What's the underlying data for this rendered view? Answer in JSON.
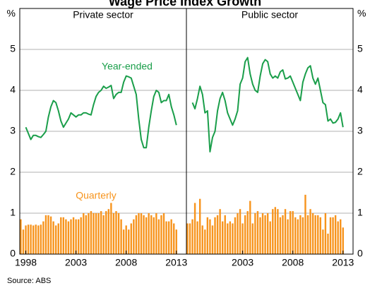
{
  "title": "Wage Price Index Growth",
  "source": "Source: ABS",
  "chart_data": [
    {
      "type": "line-bar",
      "title": "Private sector",
      "ylabel": "%",
      "x": [
        1997.5,
        1997.75,
        1998,
        1998.25,
        1998.5,
        1998.75,
        1999,
        1999.25,
        1999.5,
        1999.75,
        2000,
        2000.25,
        2000.5,
        2000.75,
        2001,
        2001.25,
        2001.5,
        2001.75,
        2002,
        2002.25,
        2002.5,
        2002.75,
        2003,
        2003.25,
        2003.5,
        2003.75,
        2004,
        2004.25,
        2004.5,
        2004.75,
        2005,
        2005.25,
        2005.5,
        2005.75,
        2006,
        2006.25,
        2006.5,
        2006.75,
        2007,
        2007.25,
        2007.5,
        2007.75,
        2008,
        2008.25,
        2008.5,
        2008.75,
        2009,
        2009.25,
        2009.5,
        2009.75,
        2010,
        2010.25,
        2010.5,
        2010.75,
        2011,
        2011.25,
        2011.5,
        2011.75,
        2012,
        2012.25,
        2012.5,
        2012.75,
        2013
      ],
      "series": [
        {
          "name": "Year-ended",
          "kind": "line",
          "color": "#1a9e4a",
          "values": [
            null,
            null,
            3.1,
            2.95,
            2.8,
            2.9,
            2.9,
            2.87,
            2.85,
            2.92,
            3.0,
            3.35,
            3.6,
            3.75,
            3.7,
            3.5,
            3.25,
            3.1,
            3.2,
            3.3,
            3.45,
            3.4,
            3.35,
            3.4,
            3.4,
            3.45,
            3.45,
            3.42,
            3.4,
            3.65,
            3.85,
            3.95,
            4.0,
            4.1,
            4.05,
            4.08,
            4.12,
            3.8,
            3.9,
            3.95,
            3.95,
            4.2,
            4.35,
            4.33,
            4.3,
            4.1,
            3.9,
            3.3,
            2.8,
            2.6,
            2.6,
            3.1,
            3.5,
            3.85,
            4.0,
            3.95,
            3.7,
            3.75,
            3.75,
            3.9,
            3.6,
            3.4,
            3.15
          ]
        },
        {
          "name": "Quarterly",
          "kind": "bar",
          "color": "#f7941d",
          "values": [
            0.85,
            0.6,
            0.7,
            0.72,
            0.72,
            0.7,
            0.72,
            0.7,
            0.72,
            0.8,
            0.95,
            0.95,
            0.92,
            0.8,
            0.7,
            0.75,
            0.9,
            0.9,
            0.85,
            0.8,
            0.85,
            0.9,
            0.85,
            0.85,
            0.9,
            1.0,
            0.95,
            1.0,
            1.05,
            1.0,
            1.0,
            1.0,
            1.05,
            0.95,
            1.05,
            1.1,
            1.25,
            1.0,
            1.05,
            1.0,
            0.85,
            0.6,
            0.7,
            0.6,
            0.75,
            0.85,
            0.95,
            1.0,
            1.0,
            0.95,
            0.9,
            1.0,
            0.95,
            0.9,
            1.0,
            0.85,
            0.95,
            1.0,
            0.8,
            0.8,
            0.85,
            0.75,
            0.6
          ]
        }
      ],
      "xlim": [
        1997.4,
        2014.0
      ],
      "xticks": [
        1998,
        2003,
        2008,
        2013
      ],
      "ylim": [
        0,
        6
      ],
      "yticks": [
        0,
        1,
        2,
        3,
        4,
        5
      ],
      "grid": true,
      "yaxis_side": "left"
    },
    {
      "type": "line-bar",
      "title": "Public sector",
      "ylabel": "%",
      "x": [
        1997.5,
        1997.75,
        1998,
        1998.25,
        1998.5,
        1998.75,
        1999,
        1999.25,
        1999.5,
        1999.75,
        2000,
        2000.25,
        2000.5,
        2000.75,
        2001,
        2001.25,
        2001.5,
        2001.75,
        2002,
        2002.25,
        2002.5,
        2002.75,
        2003,
        2003.25,
        2003.5,
        2003.75,
        2004,
        2004.25,
        2004.5,
        2004.75,
        2005,
        2005.25,
        2005.5,
        2005.75,
        2006,
        2006.25,
        2006.5,
        2006.75,
        2007,
        2007.25,
        2007.5,
        2007.75,
        2008,
        2008.25,
        2008.5,
        2008.75,
        2009,
        2009.25,
        2009.5,
        2009.75,
        2010,
        2010.25,
        2010.5,
        2010.75,
        2011,
        2011.25,
        2011.5,
        2011.75,
        2012,
        2012.25,
        2012.5,
        2012.75,
        2013
      ],
      "series": [
        {
          "kind": "line",
          "color": "#1a9e4a",
          "values": [
            null,
            null,
            3.7,
            3.55,
            3.8,
            4.1,
            3.9,
            3.45,
            3.5,
            2.5,
            2.85,
            3.0,
            3.5,
            3.8,
            3.95,
            3.75,
            3.45,
            3.3,
            3.15,
            3.3,
            3.5,
            4.15,
            4.3,
            4.7,
            4.8,
            4.4,
            4.15,
            4.0,
            3.95,
            4.35,
            4.65,
            4.75,
            4.7,
            4.4,
            4.3,
            4.35,
            4.3,
            4.45,
            4.5,
            4.28,
            4.3,
            4.35,
            4.2,
            4.05,
            3.9,
            3.75,
            4.2,
            4.4,
            4.55,
            4.6,
            4.3,
            4.15,
            4.3,
            4.0,
            3.7,
            3.65,
            3.25,
            3.3,
            3.2,
            3.22,
            3.3,
            3.45,
            3.1
          ]
        },
        {
          "kind": "bar",
          "color": "#f7941d",
          "values": [
            0.75,
            0.75,
            0.85,
            1.25,
            0.8,
            1.35,
            0.7,
            0.6,
            0.9,
            0.85,
            0.7,
            0.9,
            0.95,
            1.1,
            0.8,
            0.95,
            0.75,
            0.8,
            0.75,
            0.9,
            1.0,
            1.1,
            0.75,
            0.95,
            1.05,
            1.3,
            0.75,
            1.0,
            1.05,
            0.9,
            1.0,
            0.95,
            1.0,
            0.8,
            1.1,
            1.15,
            1.1,
            0.9,
            0.95,
            1.1,
            0.85,
            1.05,
            1.05,
            0.9,
            0.85,
            0.95,
            0.9,
            1.45,
            0.95,
            1.1,
            1.0,
            0.95,
            0.95,
            0.9,
            0.6,
            1.0,
            0.5,
            0.9,
            0.9,
            0.95,
            0.8,
            0.85,
            0.65
          ]
        }
      ],
      "xlim": [
        1997.4,
        2014.0
      ],
      "xticks": [
        2003,
        2008,
        2013
      ],
      "ylim": [
        0,
        6
      ],
      "yticks": [
        0,
        1,
        2,
        3,
        4,
        5
      ],
      "grid": true,
      "yaxis_side": "right"
    }
  ]
}
